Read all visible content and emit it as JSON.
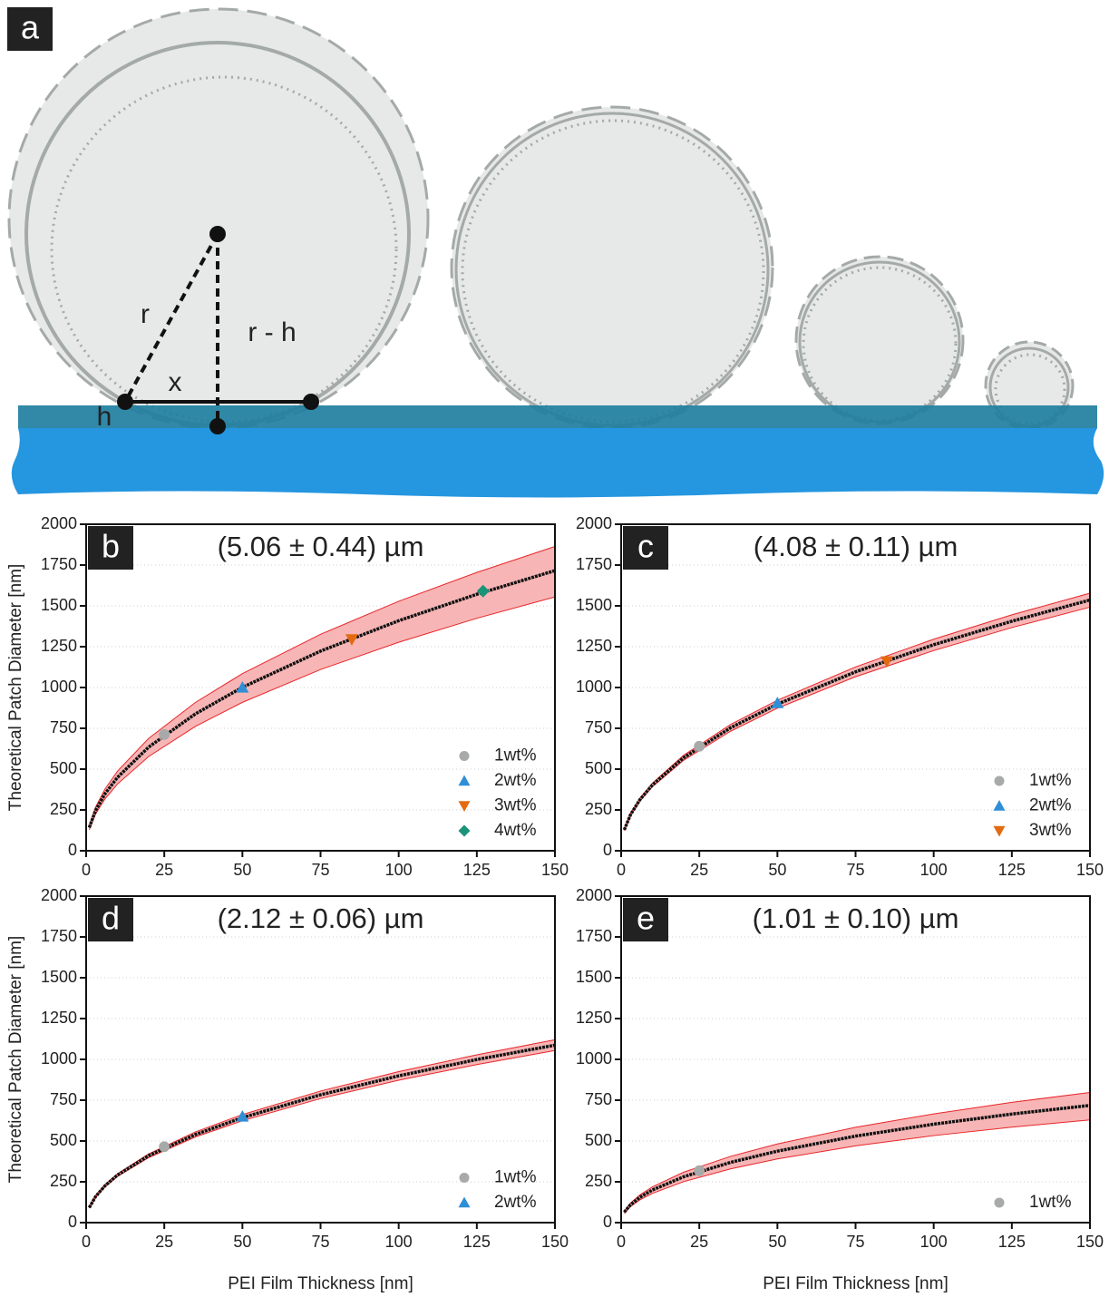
{
  "diagram": {
    "panel": "a",
    "labels": [
      "r",
      "r - h",
      "x",
      "h"
    ]
  },
  "chart_data": [
    {
      "type": "line",
      "panel": "b",
      "title": "(5.06 ± 0.44) µm",
      "y_label": "Theoretical Patch Diameter [nm]",
      "xlim": [
        0,
        150
      ],
      "xticks": [
        0,
        25,
        50,
        75,
        100,
        125,
        150
      ],
      "ylim": [
        0,
        2000
      ],
      "yticks": [
        0,
        250,
        500,
        750,
        1000,
        1250,
        1500,
        1750,
        2000
      ],
      "grid": true,
      "legend": "lower right",
      "x": [
        1,
        3,
        6,
        10,
        20,
        35,
        50,
        75,
        100,
        125,
        150
      ],
      "curve": {
        "color": "#111111",
        "values": [
          142,
          246,
          348,
          449,
          635,
          839,
          1001,
          1223,
          1409,
          1571,
          1716
        ]
      },
      "band": {
        "color": "#f7b5b5",
        "edge_color": "#e8262a",
        "lower": [
          129,
          224,
          317,
          408,
          577,
          762,
          909,
          1110,
          1277,
          1424,
          1555
        ],
        "upper": [
          154,
          267,
          377,
          487,
          688,
          909,
          1085,
          1326,
          1528,
          1705,
          1864
        ]
      },
      "points": [
        {
          "name": "1wt%",
          "color": "#a7aaa9",
          "marker": "circle",
          "x": 25,
          "y": 712
        },
        {
          "name": "2wt%",
          "color": "#2f8fd6",
          "marker": "triangle-up",
          "x": 50,
          "y": 1000
        },
        {
          "name": "3wt%",
          "color": "#e46a12",
          "marker": "triangle-down",
          "x": 85,
          "y": 1295
        },
        {
          "name": "4wt%",
          "color": "#1a9478",
          "marker": "diamond",
          "x": 127,
          "y": 1590
        }
      ]
    },
    {
      "type": "line",
      "panel": "c",
      "title": "(4.08 ± 0.11) µm",
      "xlim": [
        0,
        150
      ],
      "xticks": [
        0,
        25,
        50,
        75,
        100,
        125,
        150
      ],
      "ylim": [
        0,
        2000
      ],
      "yticks": [
        0,
        250,
        500,
        750,
        1000,
        1250,
        1500,
        1750,
        2000
      ],
      "grid": true,
      "legend": "lower right",
      "x": [
        1,
        3,
        6,
        10,
        20,
        35,
        50,
        75,
        100,
        125,
        150
      ],
      "curve": {
        "color": "#111111",
        "values": [
          128,
          221,
          313,
          403,
          570,
          753,
          898,
          1096,
          1262,
          1406,
          1536
        ]
      },
      "band": {
        "color": "#f7b5b5",
        "edge_color": "#e8262a",
        "lower": [
          124,
          215,
          304,
          392,
          554,
          732,
          873,
          1066,
          1226,
          1367,
          1492
        ],
        "upper": [
          131,
          227,
          321,
          414,
          585,
          773,
          922,
          1126,
          1296,
          1445,
          1578
        ]
      },
      "points": [
        {
          "name": "1wt%",
          "color": "#a7aaa9",
          "marker": "circle",
          "x": 25,
          "y": 640
        },
        {
          "name": "2wt%",
          "color": "#2f8fd6",
          "marker": "triangle-up",
          "x": 50,
          "y": 905
        },
        {
          "name": "3wt%",
          "color": "#e46a12",
          "marker": "triangle-down",
          "x": 85,
          "y": 1160
        }
      ]
    },
    {
      "type": "line",
      "panel": "d",
      "title": "(2.12 ± 0.06) µm",
      "y_label": "Theoretical Patch Diameter [nm]",
      "x_label": "PEI Film Thickness [nm]",
      "xlim": [
        0,
        150
      ],
      "xticks": [
        0,
        25,
        50,
        75,
        100,
        125,
        150
      ],
      "ylim": [
        0,
        2000
      ],
      "yticks": [
        0,
        250,
        500,
        750,
        1000,
        1250,
        1500,
        1750,
        2000
      ],
      "grid": true,
      "legend": "lower right",
      "x": [
        1,
        3,
        6,
        10,
        20,
        35,
        50,
        75,
        100,
        125,
        150
      ],
      "curve": {
        "color": "#111111",
        "values": [
          92,
          159,
          225,
          291,
          410,
          540,
          643,
          783,
          899,
          999,
          1087
        ]
      },
      "band": {
        "color": "#f7b5b5",
        "edge_color": "#e8262a",
        "lower": [
          89,
          155,
          219,
          282,
          398,
          525,
          624,
          760,
          872,
          968,
          1054
        ],
        "upper": [
          95,
          164,
          232,
          299,
          421,
          556,
          662,
          806,
          925,
          1028,
          1120
        ]
      },
      "points": [
        {
          "name": "1wt%",
          "color": "#a7aaa9",
          "marker": "circle",
          "x": 25,
          "y": 465
        },
        {
          "name": "2wt%",
          "color": "#2f8fd6",
          "marker": "triangle-up",
          "x": 50,
          "y": 650
        }
      ]
    },
    {
      "type": "line",
      "panel": "e",
      "title": "(1.01 ± 0.10) µm",
      "x_label": "PEI Film Thickness [nm]",
      "xlim": [
        0,
        150
      ],
      "xticks": [
        0,
        25,
        50,
        75,
        100,
        125,
        150
      ],
      "ylim": [
        0,
        2000
      ],
      "yticks": [
        0,
        250,
        500,
        750,
        1000,
        1250,
        1500,
        1750,
        2000
      ],
      "grid": true,
      "legend": "lower right",
      "x": [
        1,
        3,
        6,
        10,
        20,
        35,
        50,
        75,
        100,
        125,
        150
      ],
      "curve": {
        "color": "#111111",
        "values": [
          64,
          110,
          155,
          200,
          281,
          369,
          438,
          530,
          603,
          665,
          718
        ]
      },
      "band": {
        "color": "#f7b5b5",
        "edge_color": "#e8262a",
        "lower": [
          57,
          98,
          139,
          179,
          251,
          329,
          390,
          470,
          533,
          585,
          629
        ],
        "upper": [
          70,
          120,
          170,
          219,
          309,
          406,
          482,
          584,
          666,
          737,
          797
        ]
      },
      "points": [
        {
          "name": "1wt%",
          "color": "#a7aaa9",
          "marker": "circle",
          "x": 25,
          "y": 318
        }
      ]
    }
  ]
}
